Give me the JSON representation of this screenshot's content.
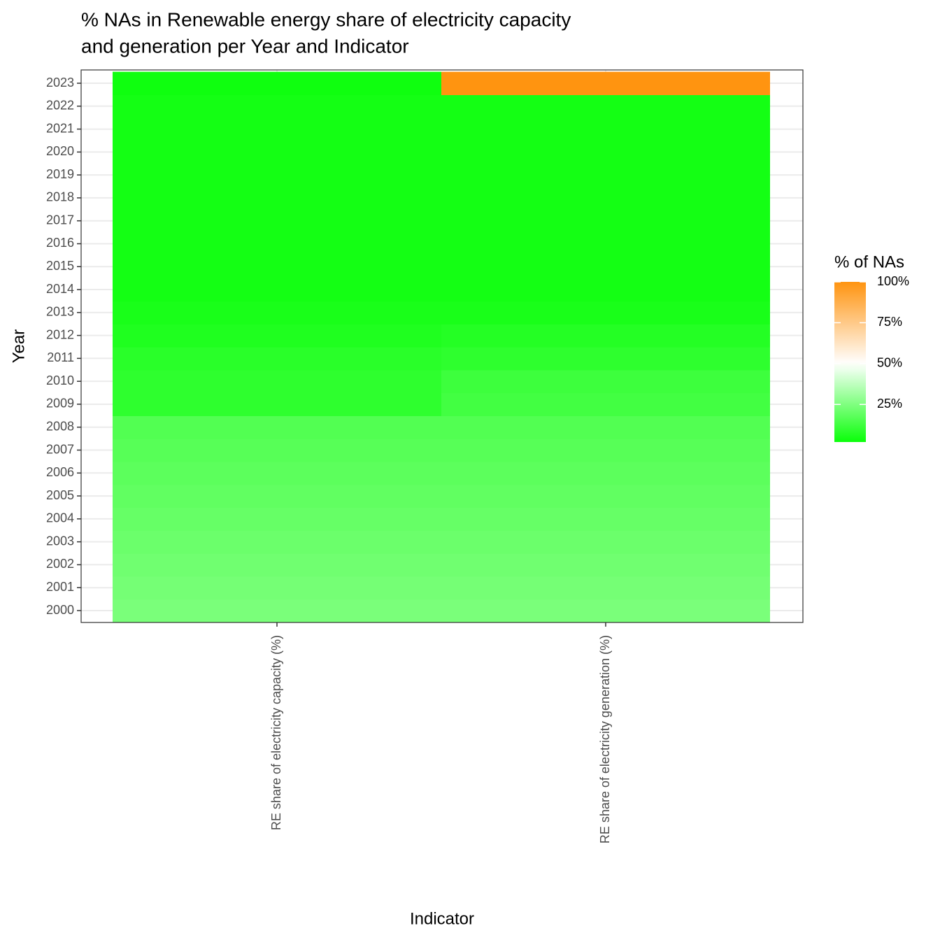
{
  "chart_data": {
    "type": "heatmap",
    "title": [
      "% NAs in Renewable energy share of electricity capacity",
      "and generation per Year and Indicator"
    ],
    "x_label": "Indicator",
    "y_label": "Year",
    "categories": [
      "RE share of electricity capacity (%)",
      "RE share of electricity generation (%)"
    ],
    "y_categories": [
      2000,
      2001,
      2002,
      2003,
      2004,
      2005,
      2006,
      2007,
      2008,
      2009,
      2010,
      2011,
      2012,
      2013,
      2014,
      2015,
      2016,
      2017,
      2018,
      2019,
      2020,
      2021,
      2022,
      2023
    ],
    "values": [
      [
        24,
        23,
        22,
        21,
        20,
        19,
        18,
        17,
        16,
        9,
        9,
        8,
        6,
        5,
        4,
        4,
        4,
        4,
        4,
        4,
        4,
        4,
        4,
        3
      ],
      [
        24,
        23,
        22,
        21,
        20,
        19,
        18,
        17,
        16,
        13,
        12,
        9,
        7,
        5,
        4,
        4,
        4,
        4,
        4,
        4,
        4,
        4,
        4,
        100
      ]
    ],
    "legend_title": "% of NAs",
    "colorlim": [
      2,
      100
    ],
    "midpoint": 50,
    "colors": {
      "low": "#00ff00",
      "mid": "#ffffff",
      "high": "#ff9410"
    },
    "legend_ticks": [
      {
        "value": 25,
        "label": "25%"
      },
      {
        "value": 50,
        "label": "50%"
      },
      {
        "value": 75,
        "label": "75%"
      },
      {
        "value": 100,
        "label": "100%"
      }
    ],
    "grid": true
  }
}
